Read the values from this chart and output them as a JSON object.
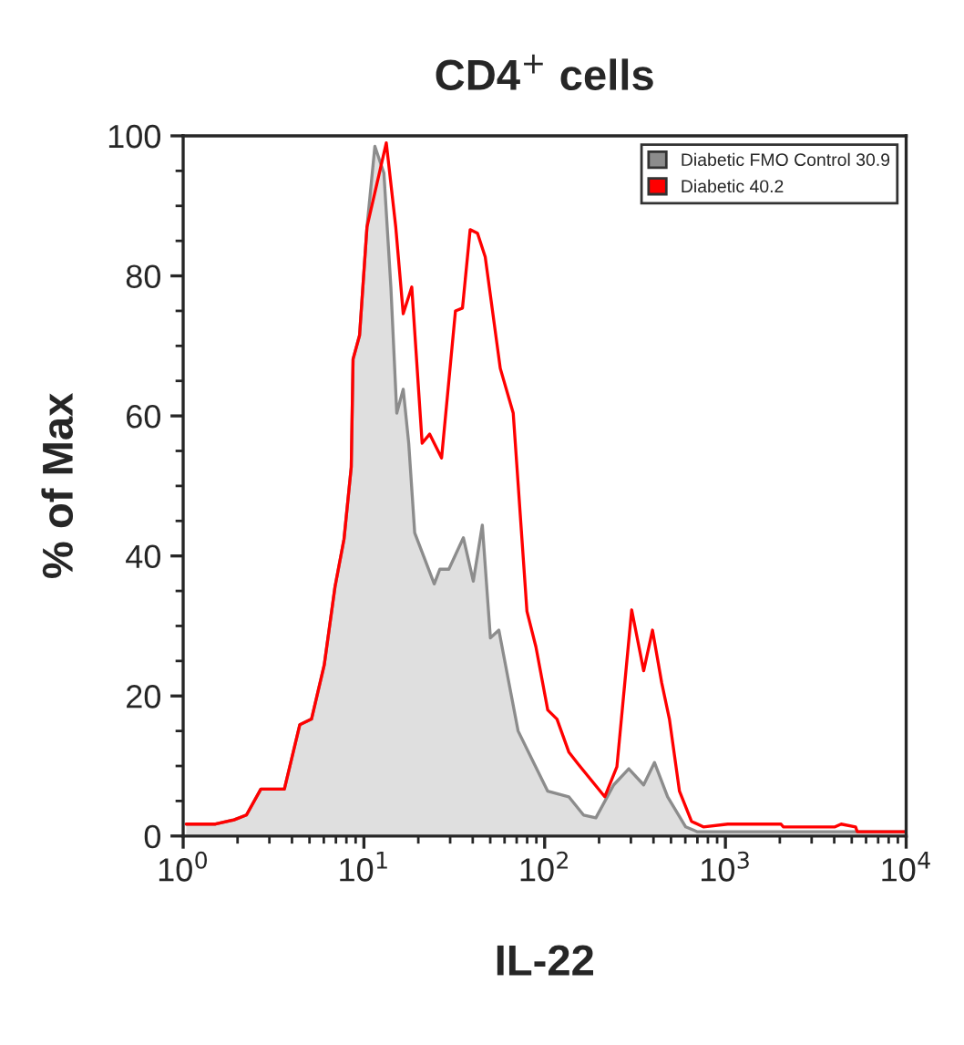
{
  "chart_data": {
    "type": "area",
    "title": "CD4$^{+}$ cells",
    "xlabel": "IL-22",
    "ylabel": "% of Max",
    "log": "x",
    "xlim": [
      1,
      10000
    ],
    "xticks": [
      {
        "value": 1,
        "label": "10$^{0}$"
      },
      {
        "value": 10,
        "label": "10$^{1}$"
      },
      {
        "value": 100,
        "label": "10$^{2}$"
      },
      {
        "value": 1000,
        "label": "10$^{3}$"
      },
      {
        "value": 10000,
        "label": "10$^{4}$"
      }
    ],
    "ylim": [
      0,
      100
    ],
    "yticks": [
      0,
      20,
      40,
      60,
      80,
      100
    ],
    "grid": false,
    "legend": "top right",
    "series": [
      {
        "name": "Diabetic FMO Control 30.9",
        "color": "#8c8c8c",
        "x": [
          1.04,
          1.51,
          1.91,
          2.24,
          2.69,
          3.63,
          4.42,
          5.13,
          6.03,
          6.92,
          7.76,
          8.51,
          8.71,
          9.46,
          10.4,
          11.5,
          12.9,
          14.1,
          15.2,
          16.5,
          17.7,
          19.1,
          24.5,
          26.3,
          29.5,
          35.5,
          40.3,
          45.2,
          50.1,
          55.8,
          71.3,
          86.1,
          104,
          136,
          164,
          192,
          241,
          292,
          353,
          405,
          479,
          603,
          701,
          10000
        ],
        "values": [
          1.7,
          1.7,
          2.3,
          3.0,
          6.7,
          6.7,
          15.9,
          16.7,
          24.4,
          35.6,
          42.4,
          52.7,
          68.1,
          71.5,
          87.0,
          98.5,
          94.7,
          78.4,
          60.4,
          63.8,
          56.1,
          43.3,
          36.0,
          38.1,
          38.1,
          42.6,
          36.4,
          44.4,
          28.3,
          29.4,
          15.0,
          10.7,
          6.4,
          5.6,
          3.0,
          2.6,
          7.3,
          9.6,
          7.3,
          10.5,
          5.6,
          1.3,
          0.6,
          0.6
        ]
      },
      {
        "name": "Diabetic 40.2",
        "type": "line",
        "color": "#ff0000",
        "x": [
          1.04,
          1.51,
          1.91,
          2.24,
          2.69,
          3.63,
          4.42,
          5.13,
          6.03,
          6.92,
          7.76,
          8.51,
          8.71,
          9.46,
          10.4,
          13.3,
          15.0,
          16.5,
          18.4,
          21.0,
          23.1,
          26.9,
          32.1,
          35.1,
          38.7,
          42.5,
          46.9,
          56.8,
          67.0,
          79.8,
          89.5,
          104,
          117,
          136,
          153,
          215,
          251,
          303,
          353,
          395,
          444,
          490,
          557,
          649,
          755,
          1030,
          2030,
          2090,
          4040,
          4370,
          5250,
          5370,
          10000
        ],
        "values": [
          1.7,
          1.7,
          2.3,
          3.0,
          6.7,
          6.7,
          15.9,
          16.7,
          24.4,
          35.6,
          42.4,
          52.7,
          68.1,
          71.5,
          87.0,
          99.0,
          87.0,
          74.6,
          78.4,
          56.1,
          57.4,
          54.0,
          75.0,
          75.4,
          86.6,
          86.1,
          82.7,
          66.8,
          60.4,
          32.1,
          27.0,
          18.0,
          16.7,
          12.0,
          10.3,
          5.6,
          9.9,
          32.3,
          23.6,
          29.4,
          21.9,
          16.7,
          6.4,
          2.1,
          1.3,
          1.7,
          1.7,
          1.3,
          1.3,
          1.7,
          1.3,
          0.6,
          0.6
        ]
      }
    ]
  }
}
